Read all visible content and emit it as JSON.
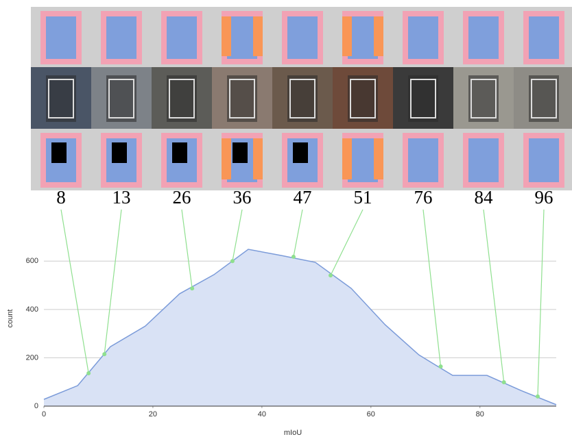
{
  "chart_data": {
    "type": "area",
    "x_label": "mIoU",
    "y_label": "count",
    "x": [
      0,
      6.2,
      12.2,
      18.6,
      24.9,
      31.2,
      37.5,
      43.6,
      49.8,
      56.4,
      62.6,
      68.8,
      75,
      81.3,
      87.5,
      94
    ],
    "values": [
      28,
      85,
      246,
      331,
      465,
      544,
      649,
      623,
      595,
      487,
      337,
      212,
      127,
      127,
      65,
      6
    ],
    "color": "#7b9bd9",
    "fill": "#d9e2f5",
    "xlim": [
      0,
      94
    ],
    "xticks": [
      0,
      20,
      40,
      60,
      80
    ],
    "ylim": [
      0,
      700
    ],
    "yticks": [
      0,
      200,
      400,
      600
    ],
    "grid": true,
    "examples": [
      {
        "miou": 8,
        "x": 8.2,
        "y": 136
      },
      {
        "miou": 13,
        "x": 11.1,
        "y": 215
      },
      {
        "miou": 26,
        "x": 27.2,
        "y": 487
      },
      {
        "miou": 36,
        "x": 34.6,
        "y": 600
      },
      {
        "miou": 47,
        "x": 45.8,
        "y": 618
      },
      {
        "miou": 51,
        "x": 52.6,
        "y": 541
      },
      {
        "miou": 76,
        "x": 72.8,
        "y": 164
      },
      {
        "miou": 84,
        "x": 84.4,
        "y": 99
      },
      {
        "miou": 96,
        "x": 90.6,
        "y": 40
      }
    ],
    "marker_color": "#8fe08f"
  }
}
